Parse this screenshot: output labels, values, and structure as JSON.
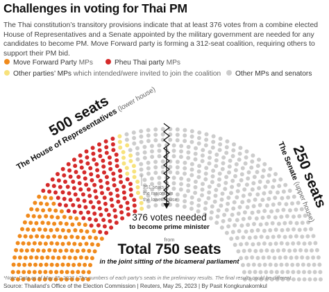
{
  "title": "Challenges in voting for Thai PM",
  "intro": "The Thai constitution’s transitory provisions indicate that at least 376 votes from a combine elected House of Representatives and a Senate appointed by the military government are needed for any candidates to become PM. Move Forward party is forming a 312-seat coalition, requiring others to support their PM bid.",
  "legend": {
    "move_forward": {
      "name": "Move Forward Party",
      "suffix": "MPs"
    },
    "pheu_thai": {
      "name": "Pheu Thai party",
      "suffix": "MPs"
    },
    "other_parties": {
      "name": "Other parties’ MPs",
      "suffix": "which intended/were invited to join the coalition"
    },
    "others": {
      "name": "Other MPs and senators"
    }
  },
  "colors": {
    "move_forward": "#f08a1c",
    "pheu_thai": "#d52a2a",
    "other_parties": "#f7e27c",
    "others": "#cccccc",
    "text": "#222222",
    "muted": "#888888"
  },
  "house": {
    "seats_label": "500 seats",
    "name": "The House of Representatives",
    "sub": "(lower house)"
  },
  "senate": {
    "seats_label": "250 seats",
    "name": "The Senate",
    "sub": "(upper house)"
  },
  "majority_note": {
    "line1": "251 seats:",
    "line2": "the majority in",
    "line3": "the lower house"
  },
  "votes_needed": {
    "main": "376 votes needed",
    "sub": "to become prime minister"
  },
  "from_label": "from",
  "total": {
    "main": "Total 750 seats",
    "sub": "in the joint sitting of the bicameral parliament"
  },
  "footnote": "*Note: Data as of May 25, 2023 / The numbers of each party’s seats in the preliminary results. The final results could be different.",
  "source": "Source: Thailand’s Office of the Election Commission | Reuters, May 25, 2023 | By Pasit Kongkunakornkul",
  "chart_data": {
    "type": "parliament",
    "total_seats": 750,
    "majority_needed": 376,
    "lower_house_majority": 251,
    "groups": [
      {
        "name": "Move Forward Party",
        "seats": 151
      },
      {
        "name": "Pheu Thai party",
        "seats": 141
      },
      {
        "name": "Other parties’ MPs",
        "seats": 20
      },
      {
        "name": "Other MPs and senators",
        "seats": 438
      }
    ],
    "coalition_seats": 312,
    "houses": [
      {
        "name": "The House of Representatives",
        "seats": 500
      },
      {
        "name": "The Senate",
        "seats": 250
      }
    ]
  }
}
